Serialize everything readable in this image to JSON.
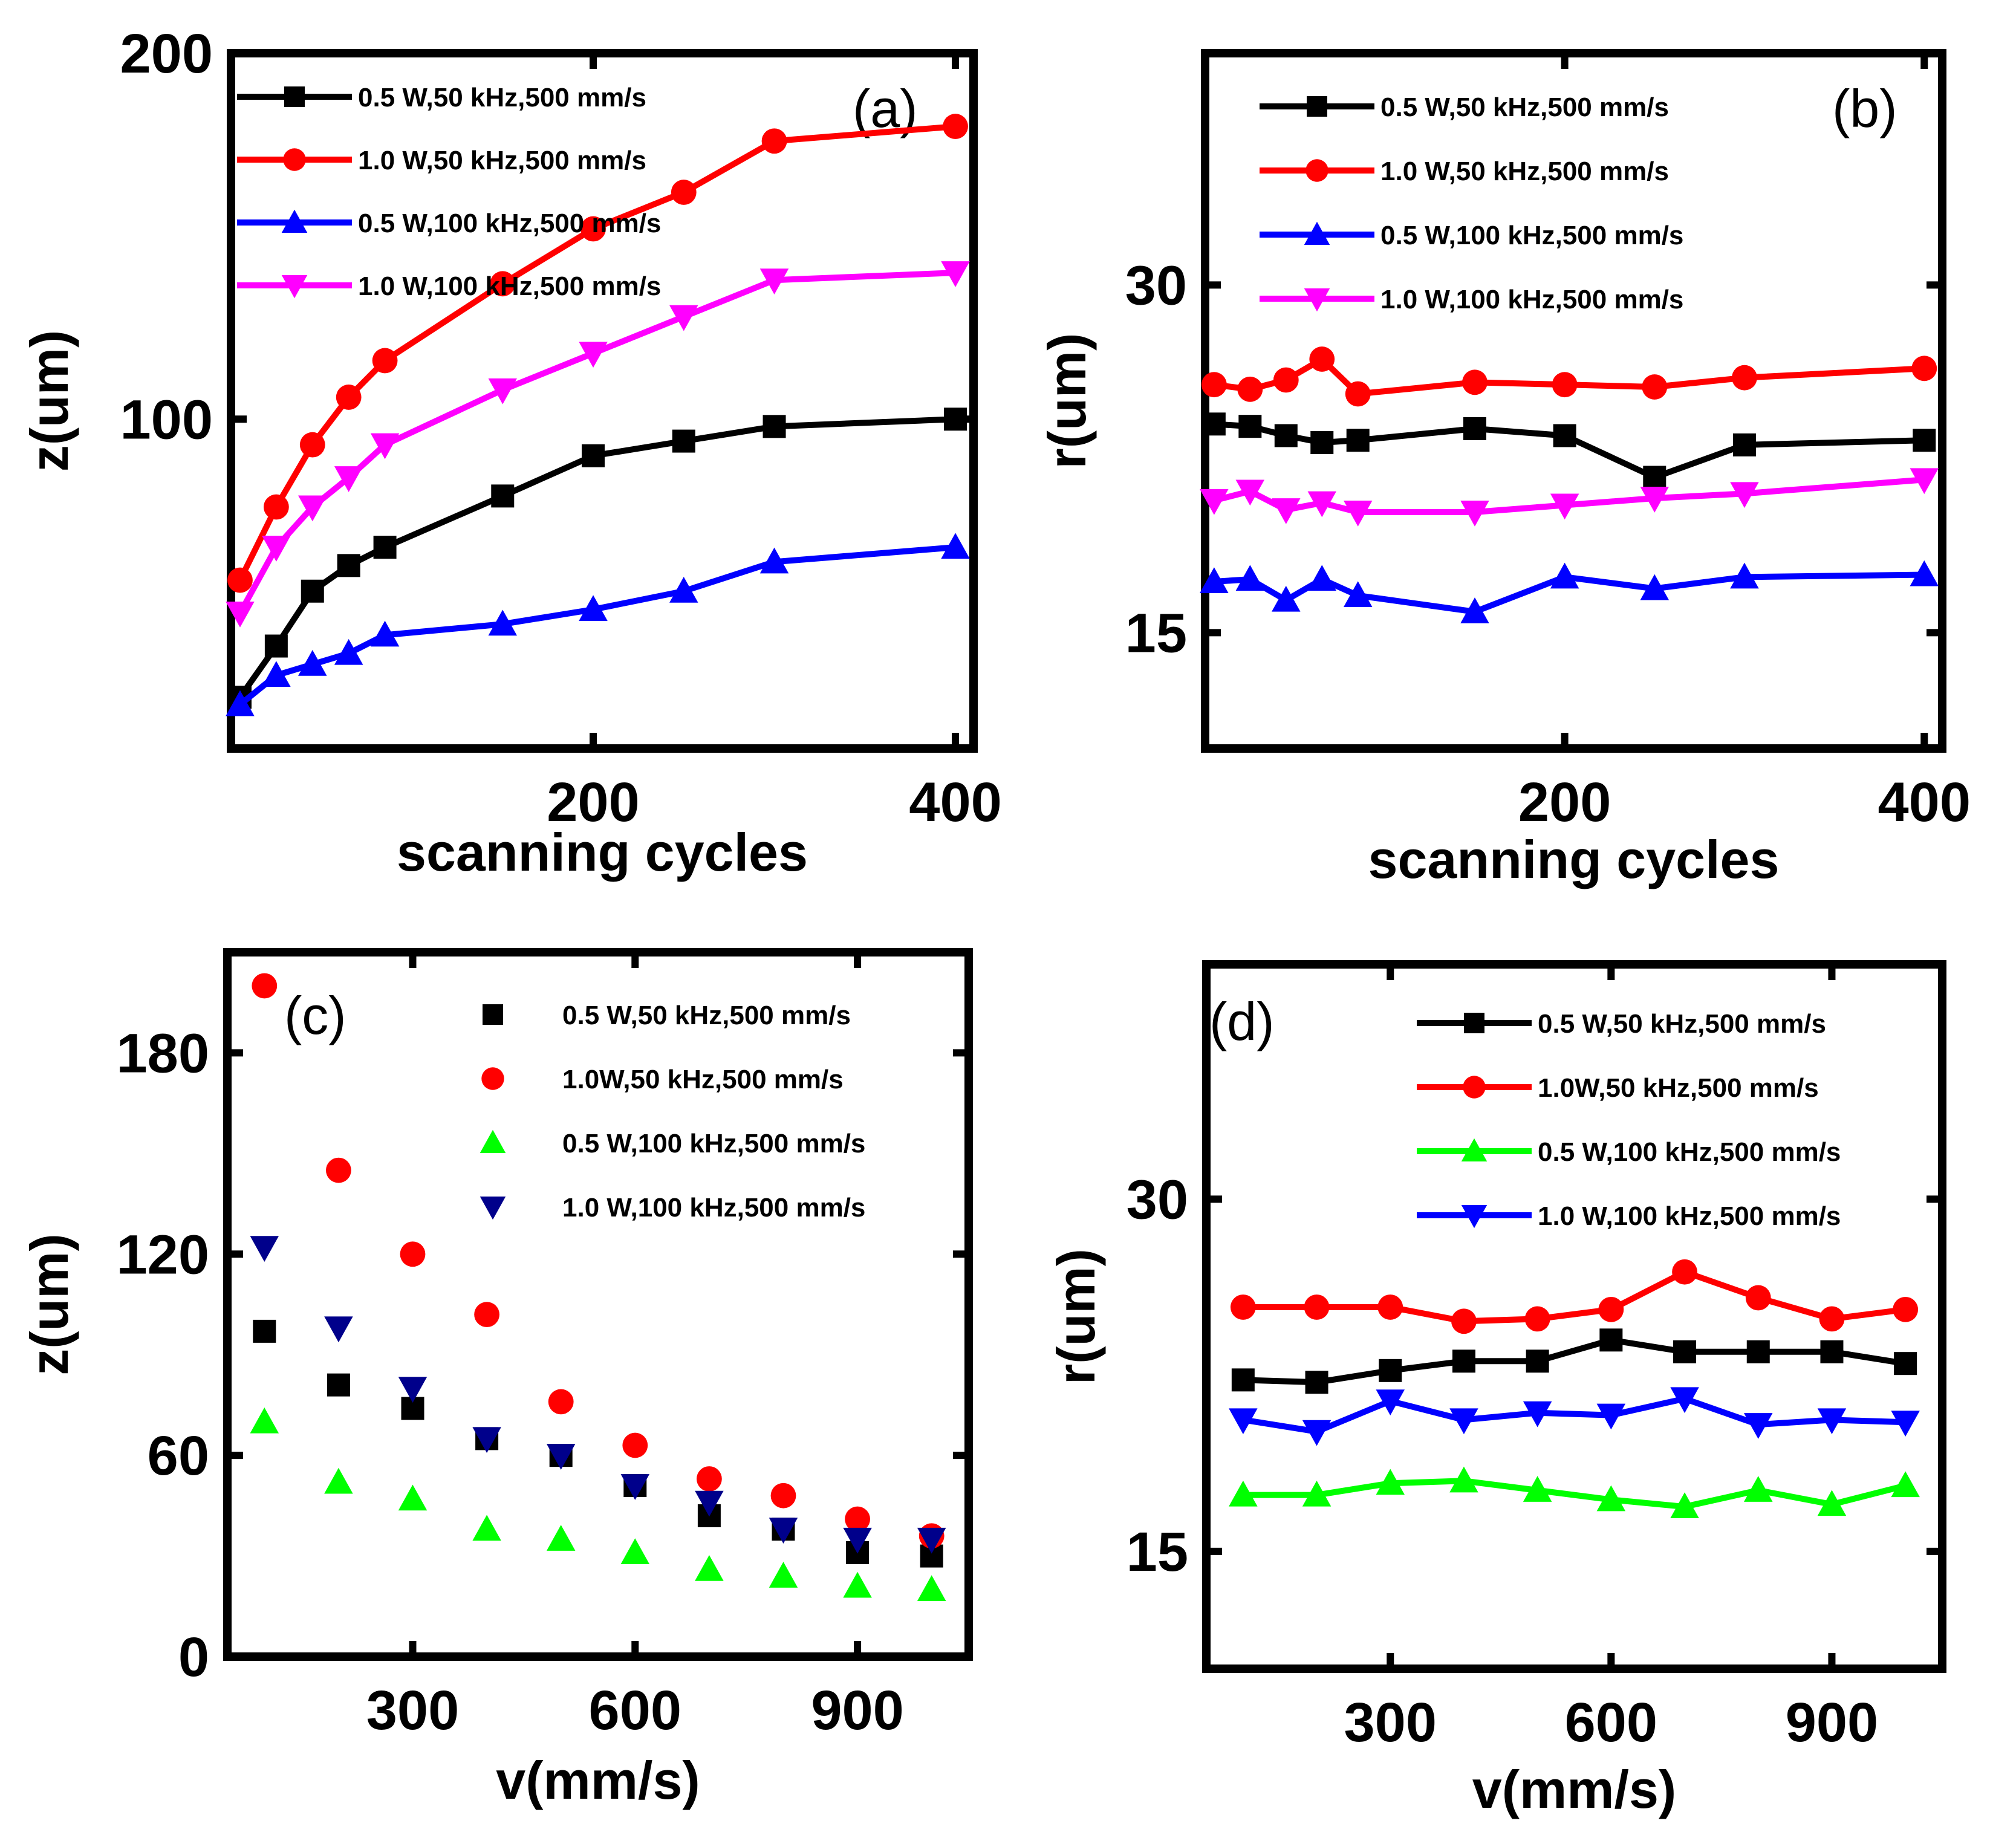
{
  "chart_data": [
    {
      "type": "line",
      "panel_label": "(a)",
      "xlabel": "scanning cycles",
      "ylabel": "z(um)",
      "xlim": [
        0,
        410
      ],
      "ylim": [
        10,
        200
      ],
      "xticks": [
        200,
        400
      ],
      "yticks": [
        100,
        200
      ],
      "x": [
        5,
        25,
        45,
        65,
        85,
        150,
        200,
        250,
        300,
        400
      ],
      "series": [
        {
          "name": "0.5 W,50 kHz,500 mm/s",
          "color": "#000000",
          "marker": "square",
          "values": [
            24,
            38,
            53,
            60,
            65,
            79,
            90,
            94,
            98,
            100
          ]
        },
        {
          "name": "1.0 W,50 kHz,500 mm/s",
          "color": "#ff0000",
          "marker": "circle",
          "values": [
            56,
            76,
            93,
            106,
            116,
            137,
            152,
            162,
            176,
            180
          ]
        },
        {
          "name": "0.5 W,100 kHz,500 mm/s",
          "color": "#0000ff",
          "marker": "triangle-up",
          "values": [
            22,
            30,
            33,
            36,
            41,
            44,
            48,
            53,
            61,
            65
          ]
        },
        {
          "name": "1.0 W,100 kHz,500 mm/s",
          "color": "#ff00ff",
          "marker": "triangle-down",
          "values": [
            47,
            65,
            76,
            84,
            93,
            108,
            118,
            128,
            138,
            140
          ]
        }
      ],
      "legend_position": "top-left"
    },
    {
      "type": "line",
      "panel_label": "(b)",
      "xlabel": "scanning cycles",
      "ylabel": "r(um)",
      "xlim": [
        0,
        410
      ],
      "ylim": [
        10,
        40
      ],
      "xticks": [
        200,
        400
      ],
      "yticks": [
        15,
        30
      ],
      "x": [
        5,
        25,
        45,
        65,
        85,
        150,
        200,
        250,
        300,
        400
      ],
      "series": [
        {
          "name": "0.5 W,50 kHz,500 mm/s",
          "color": "#000000",
          "marker": "square",
          "values": [
            24.0,
            23.9,
            23.5,
            23.2,
            23.3,
            23.8,
            23.5,
            21.7,
            23.1,
            23.3
          ]
        },
        {
          "name": "1.0 W,50 kHz,500 mm/s",
          "color": "#ff0000",
          "marker": "circle",
          "values": [
            25.7,
            25.5,
            25.9,
            26.8,
            25.3,
            25.8,
            25.7,
            25.6,
            26.0,
            26.4
          ]
        },
        {
          "name": "0.5 W,100 kHz,500 mm/s",
          "color": "#0000ff",
          "marker": "triangle-up",
          "values": [
            17.2,
            17.3,
            16.4,
            17.3,
            16.6,
            15.9,
            17.4,
            16.9,
            17.4,
            17.5
          ]
        },
        {
          "name": "1.0 W,100 kHz,500 mm/s",
          "color": "#ff00ff",
          "marker": "triangle-down",
          "values": [
            20.7,
            21.1,
            20.3,
            20.6,
            20.2,
            20.2,
            20.5,
            20.8,
            21.0,
            21.6
          ]
        }
      ],
      "legend_position": "top-left"
    },
    {
      "type": "scatter",
      "panel_label": "(c)",
      "xlabel": "v(mm/s)",
      "ylabel": "z(um)",
      "xlim": [
        50,
        1050
      ],
      "ylim": [
        0,
        210
      ],
      "xticks": [
        300,
        600,
        900
      ],
      "yticks": [
        0,
        60,
        120,
        180
      ],
      "x": [
        100,
        200,
        300,
        400,
        500,
        600,
        700,
        800,
        900,
        1000
      ],
      "series": [
        {
          "name": "0.5 W,50 kHz,500 mm/s",
          "color": "#000000",
          "marker": "square",
          "values": [
            97,
            81,
            74,
            65,
            60,
            51,
            42,
            38,
            31,
            30
          ]
        },
        {
          "name": "1.0W,50 kHz,500 mm/s",
          "color": "#ff0000",
          "marker": "circle",
          "values": [
            200,
            145,
            120,
            102,
            76,
            63,
            53,
            48,
            41,
            36
          ]
        },
        {
          "name": "0.5 W,100 kHz,500 mm/s",
          "color": "#00ff00",
          "marker": "triangle-up",
          "values": [
            70,
            52,
            47,
            38,
            35,
            31,
            26,
            24,
            21,
            20
          ]
        },
        {
          "name": "1.0 W,100 kHz,500 mm/s",
          "color": "#00008b",
          "marker": "triangle-down",
          "values": [
            122,
            98,
            80,
            65,
            60,
            51,
            46,
            38,
            35,
            35
          ]
        }
      ],
      "legend_position": "top-right"
    },
    {
      "type": "line",
      "panel_label": "(d)",
      "xlabel": "v(mm/s)",
      "ylabel": "r(um)",
      "xlim": [
        50,
        1050
      ],
      "ylim": [
        10,
        40
      ],
      "xticks": [
        300,
        600,
        900
      ],
      "yticks": [
        15,
        30
      ],
      "x": [
        100,
        200,
        300,
        400,
        500,
        600,
        700,
        800,
        900,
        1000
      ],
      "series": [
        {
          "name": "0.5 W,50 kHz,500 mm/s",
          "color": "#000000",
          "marker": "square",
          "values": [
            22.3,
            22.2,
            22.7,
            23.1,
            23.1,
            24.0,
            23.5,
            23.5,
            23.5,
            23.0
          ]
        },
        {
          "name": "1.0W,50 kHz,500 mm/s",
          "color": "#ff0000",
          "marker": "circle",
          "values": [
            25.4,
            25.4,
            25.4,
            24.8,
            24.9,
            25.3,
            26.9,
            25.8,
            24.9,
            25.3
          ]
        },
        {
          "name": "0.5 W,100 kHz,500 mm/s",
          "color": "#00ff00",
          "marker": "triangle-up",
          "values": [
            17.4,
            17.4,
            17.9,
            18.0,
            17.6,
            17.2,
            16.9,
            17.6,
            17.0,
            17.8
          ]
        },
        {
          "name": "1.0 W,100 kHz,500 mm/s",
          "color": "#0000ff",
          "marker": "triangle-down",
          "values": [
            20.6,
            20.1,
            21.4,
            20.6,
            20.9,
            20.8,
            21.5,
            20.4,
            20.6,
            20.5
          ]
        }
      ],
      "legend_position": "top-right"
    }
  ]
}
